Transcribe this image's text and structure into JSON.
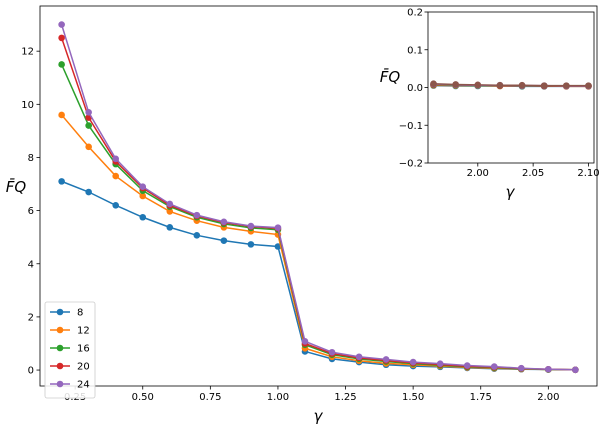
{
  "chart_data": [
    {
      "type": "line",
      "title": "",
      "xlabel": "γ",
      "ylabel": "F̄Q",
      "xlim": [
        0.12,
        2.18
      ],
      "ylim": [
        -0.6,
        13.7
      ],
      "xticks": [
        0.25,
        0.5,
        0.75,
        1.0,
        1.25,
        1.5,
        1.75,
        2.0
      ],
      "xtick_labels": [
        "0.25",
        "0.50",
        "0.75",
        "1.00",
        "1.25",
        "1.50",
        "1.75",
        "2.00"
      ],
      "yticks": [
        0,
        2,
        4,
        6,
        8,
        10,
        12
      ],
      "ytick_labels": [
        "0",
        "2",
        "4",
        "6",
        "8",
        "10",
        "12"
      ],
      "grid": false,
      "legend": "bottom-left",
      "x": [
        0.2,
        0.3,
        0.4,
        0.5,
        0.6,
        0.7,
        0.8,
        0.9,
        1.0,
        1.1,
        1.2,
        1.3,
        1.4,
        1.5,
        1.6,
        1.7,
        1.8,
        1.9,
        2.0,
        2.1
      ],
      "series": [
        {
          "name": "8",
          "color": "#1f77b4",
          "values": [
            7.1,
            6.7,
            6.2,
            5.75,
            5.37,
            5.07,
            4.87,
            4.73,
            4.65,
            0.7,
            0.42,
            0.3,
            0.2,
            0.15,
            0.12,
            0.08,
            0.05,
            0.03,
            0.02,
            0.01
          ]
        },
        {
          "name": "12",
          "color": "#ff7f0e",
          "values": [
            9.6,
            8.4,
            7.3,
            6.55,
            5.97,
            5.62,
            5.37,
            5.22,
            5.1,
            0.82,
            0.5,
            0.35,
            0.25,
            0.2,
            0.15,
            0.1,
            0.07,
            0.04,
            0.02,
            0.01
          ]
        },
        {
          "name": "16",
          "color": "#2ca02c",
          "values": [
            11.5,
            9.2,
            7.75,
            6.75,
            6.15,
            5.75,
            5.5,
            5.35,
            5.28,
            0.95,
            0.58,
            0.42,
            0.32,
            0.24,
            0.18,
            0.12,
            0.09,
            0.05,
            0.02,
            0.01
          ]
        },
        {
          "name": "20",
          "color": "#d62728",
          "values": [
            12.5,
            9.5,
            7.85,
            6.85,
            6.2,
            5.8,
            5.55,
            5.4,
            5.33,
            1.0,
            0.62,
            0.46,
            0.36,
            0.27,
            0.21,
            0.14,
            0.11,
            0.06,
            0.03,
            0.01
          ]
        },
        {
          "name": "24",
          "color": "#9467bd",
          "values": [
            13.0,
            9.7,
            7.95,
            6.9,
            6.25,
            5.83,
            5.58,
            5.42,
            5.36,
            1.08,
            0.67,
            0.5,
            0.4,
            0.3,
            0.24,
            0.17,
            0.13,
            0.07,
            0.03,
            0.01
          ]
        }
      ]
    },
    {
      "type": "line",
      "title": "",
      "xlabel": "γ",
      "ylabel": "F̄Q",
      "xlim": [
        1.955,
        2.105
      ],
      "ylim": [
        -0.2,
        0.2
      ],
      "xticks": [
        2.0,
        2.05,
        2.1
      ],
      "xtick_labels": [
        "2.00",
        "2.05",
        "2.10"
      ],
      "yticks": [
        -0.2,
        -0.1,
        0.0,
        0.1,
        0.2
      ],
      "ytick_labels": [
        "−0.2",
        "−0.1",
        "0.0",
        "0.1",
        "0.2"
      ],
      "grid": false,
      "x": [
        1.96,
        1.98,
        2.0,
        2.02,
        2.04,
        2.06,
        2.08,
        2.1
      ],
      "series": [
        {
          "color": "#1f77b4",
          "values": [
            0.005,
            0.004,
            0.004,
            0.004,
            0.003,
            0.003,
            0.003,
            0.003
          ]
        },
        {
          "color": "#ff7f0e",
          "values": [
            0.006,
            0.005,
            0.005,
            0.004,
            0.004,
            0.004,
            0.003,
            0.003
          ]
        },
        {
          "color": "#2ca02c",
          "values": [
            0.007,
            0.006,
            0.005,
            0.005,
            0.004,
            0.004,
            0.004,
            0.004
          ]
        },
        {
          "color": "#d62728",
          "values": [
            0.008,
            0.007,
            0.006,
            0.005,
            0.005,
            0.004,
            0.004,
            0.004
          ]
        },
        {
          "color": "#9467bd",
          "values": [
            0.009,
            0.007,
            0.006,
            0.006,
            0.005,
            0.005,
            0.004,
            0.004
          ]
        },
        {
          "color": "#8c564b",
          "values": [
            0.01,
            0.008,
            0.007,
            0.006,
            0.006,
            0.005,
            0.005,
            0.005
          ]
        }
      ]
    }
  ]
}
